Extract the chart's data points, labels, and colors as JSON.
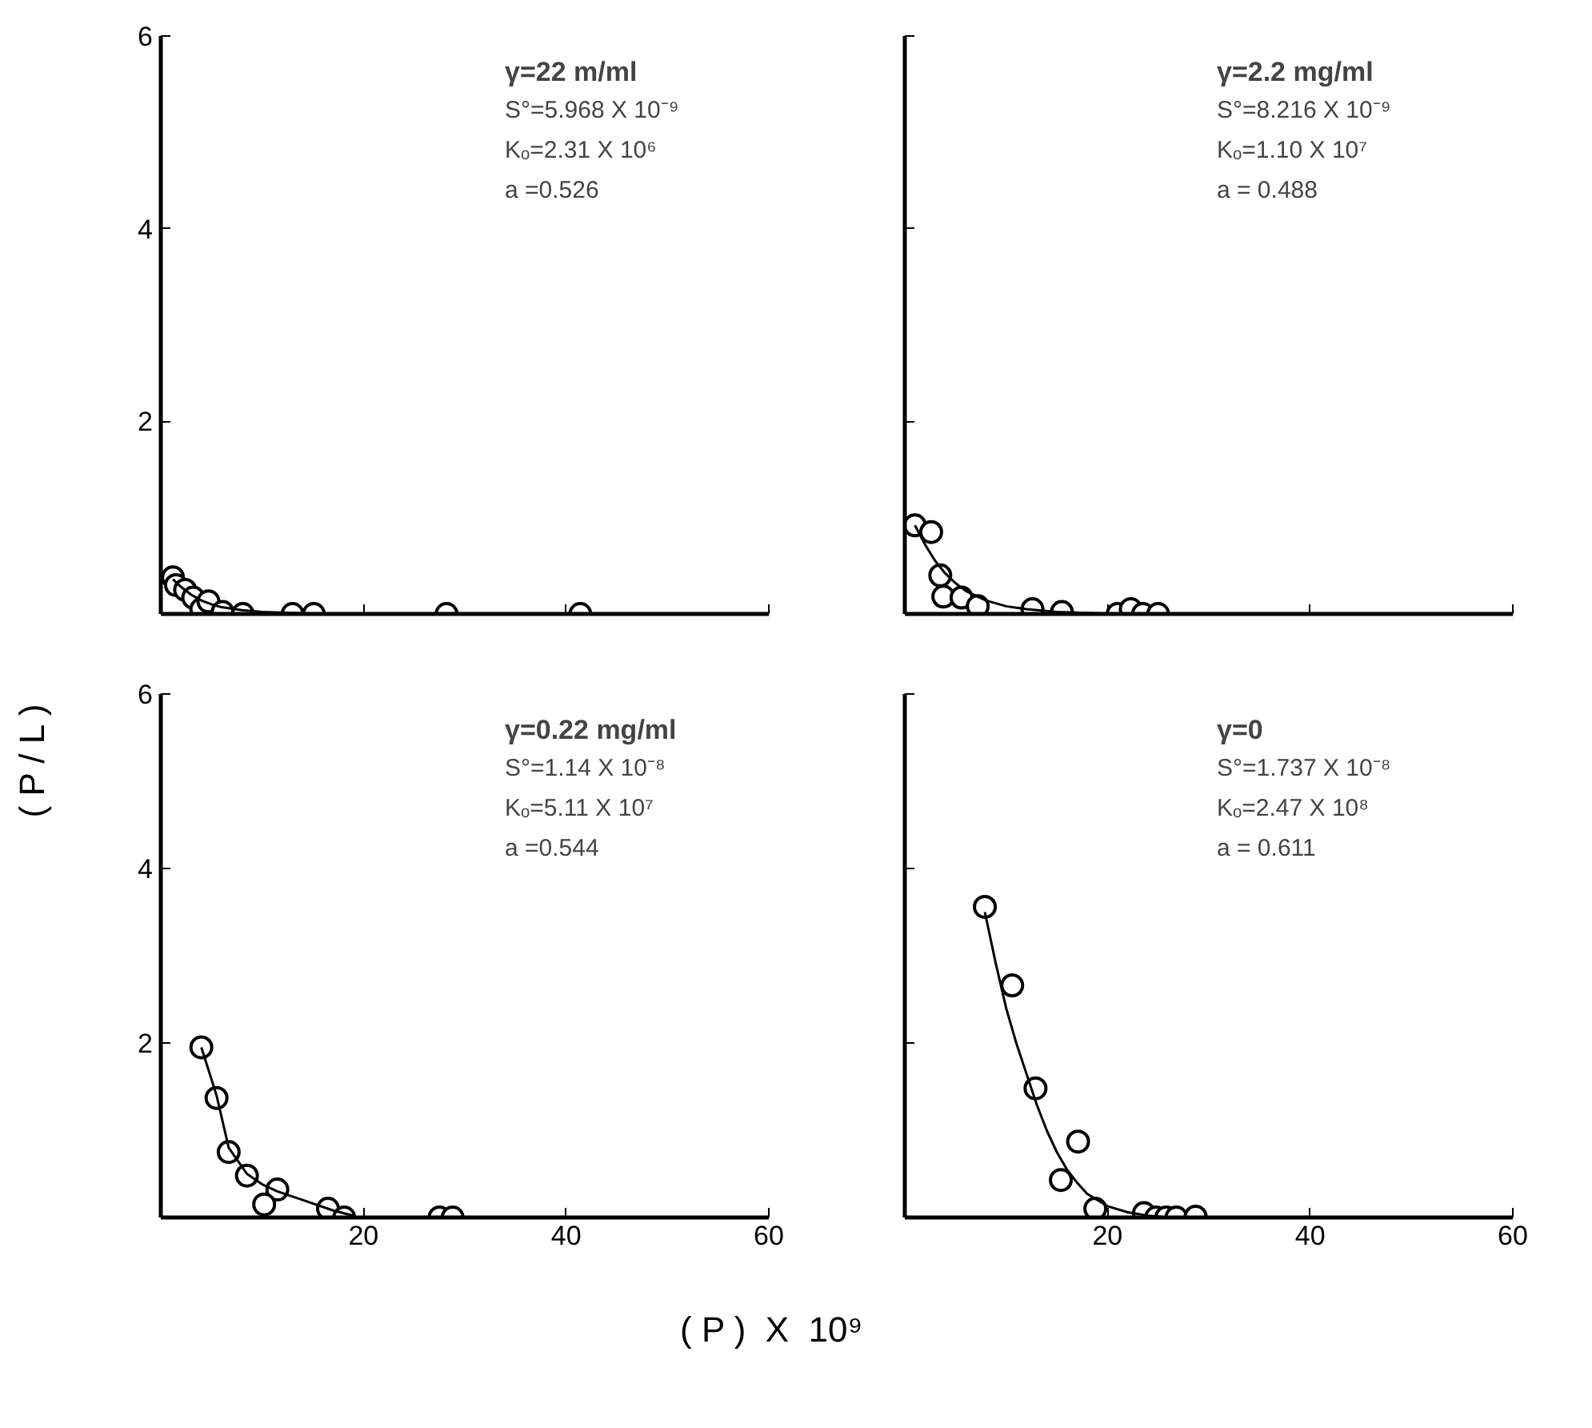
{
  "chart_data": [
    {
      "type": "scatter",
      "ylabel": "( P / L )",
      "xlim": [
        0,
        60
      ],
      "ylim": [
        0,
        6
      ],
      "xticks": [
        20,
        40,
        60
      ],
      "yticks": [
        2,
        4,
        6
      ],
      "tick_labels": "y",
      "grid": false,
      "annotations": [
        "γ=22 m/ml",
        "S°=5.968 X 10⁻⁹",
        "Kₒ=2.31 X 10⁶",
        "a =0.526"
      ],
      "series": [
        {
          "marker": "circle",
          "color": "#000000",
          "x": [
            1.2,
            1.5,
            2.4,
            3.2,
            4.0,
            4.7,
            6.1,
            8.1,
            13,
            15.1,
            28.2,
            41.4
          ],
          "values": [
            0.38,
            0.3,
            0.25,
            0.17,
            0.05,
            0.13,
            0.02,
            0,
            0,
            0,
            0,
            0
          ]
        },
        {
          "type": "line",
          "line_style": "solid",
          "color": "#000000",
          "x": [
            1.2,
            2,
            3,
            4,
            5,
            6,
            8,
            10,
            13,
            16
          ],
          "values": [
            0.36,
            0.28,
            0.2,
            0.14,
            0.1,
            0.07,
            0.04,
            0.02,
            0.01,
            0
          ]
        }
      ]
    },
    {
      "type": "scatter",
      "xlim": [
        0,
        60
      ],
      "ylim": [
        0,
        6
      ],
      "xticks": [
        20,
        40,
        60
      ],
      "yticks": [
        2,
        4,
        6
      ],
      "tick_labels": false,
      "grid": false,
      "annotations": [
        "γ=2.2 mg/ml",
        "S°=8.216 X 10⁻⁹",
        "Kₒ=1.10 X 10⁷",
        "a = 0.488"
      ],
      "series": [
        {
          "marker": "circle",
          "color": "#000000",
          "x": [
            1.0,
            2.6,
            3.5,
            3.8,
            5.6,
            7.2,
            12.6,
            15.5,
            21,
            22.3,
            23.5,
            25
          ],
          "values": [
            0.92,
            0.85,
            0.4,
            0.18,
            0.17,
            0.08,
            0.05,
            0.02,
            0,
            0.05,
            0,
            0
          ]
        },
        {
          "type": "line",
          "line_style": "solid",
          "color": "#000000",
          "x": [
            1.0,
            2,
            3,
            4,
            5,
            6,
            8,
            10,
            12,
            15,
            18,
            21
          ],
          "values": [
            0.92,
            0.72,
            0.55,
            0.42,
            0.32,
            0.24,
            0.14,
            0.08,
            0.05,
            0.02,
            0.01,
            0
          ]
        }
      ]
    },
    {
      "type": "scatter",
      "xlabel": "( P )  X  10⁹",
      "xlim": [
        0,
        60
      ],
      "ylim": [
        0,
        6
      ],
      "xticks": [
        20,
        40,
        60
      ],
      "yticks": [
        2,
        4,
        6
      ],
      "grid": false,
      "annotations": [
        "γ=0.22 mg/ml",
        "S°=1.14 X 10⁻⁸",
        "Kₒ=5.11 X 10⁷",
        "a =0.544"
      ],
      "series": [
        {
          "marker": "circle",
          "color": "#000000",
          "x": [
            4.0,
            5.5,
            6.7,
            8.5,
            11.5,
            10.2,
            16.5,
            18.1,
            27.5,
            28.8
          ],
          "values": [
            1.95,
            1.37,
            0.75,
            0.48,
            0.32,
            0.15,
            0.1,
            0,
            0,
            0
          ]
        },
        {
          "type": "line",
          "line_style": "solid",
          "color": "#000000",
          "x": [
            4,
            5.5,
            6.7,
            8.5,
            10,
            11.5,
            14,
            17,
            19
          ],
          "values": [
            1.95,
            1.4,
            0.8,
            0.5,
            0.38,
            0.3,
            0.2,
            0.08,
            0.02
          ]
        }
      ]
    },
    {
      "type": "scatter",
      "xlim": [
        0,
        60
      ],
      "ylim": [
        0,
        6
      ],
      "xticks": [
        20,
        40,
        60
      ],
      "yticks": [
        2,
        4,
        6
      ],
      "tick_labels": "x",
      "grid": false,
      "annotations": [
        "γ=0",
        "S°=1.737 X 10⁻⁸",
        "Kₒ=2.47 X 10⁸",
        "a = 0.611"
      ],
      "series": [
        {
          "marker": "circle",
          "color": "#000000",
          "x": [
            7.9,
            10.6,
            12.9,
            17.1,
            15.4,
            18.8,
            23.6,
            24.8,
            25.8,
            26.8,
            28.7
          ],
          "values": [
            3.56,
            2.66,
            1.48,
            0.87,
            0.43,
            0.1,
            0.05,
            0,
            0,
            0,
            0.01
          ]
        },
        {
          "type": "line",
          "line_style": "solid",
          "color": "#000000",
          "x": [
            7.9,
            9,
            10,
            11,
            12,
            13,
            14,
            15,
            16,
            17,
            18,
            20,
            22,
            24,
            26
          ],
          "values": [
            3.5,
            2.9,
            2.4,
            2.0,
            1.65,
            1.3,
            1.0,
            0.75,
            0.55,
            0.4,
            0.27,
            0.13,
            0.06,
            0.02,
            0
          ]
        }
      ]
    }
  ]
}
